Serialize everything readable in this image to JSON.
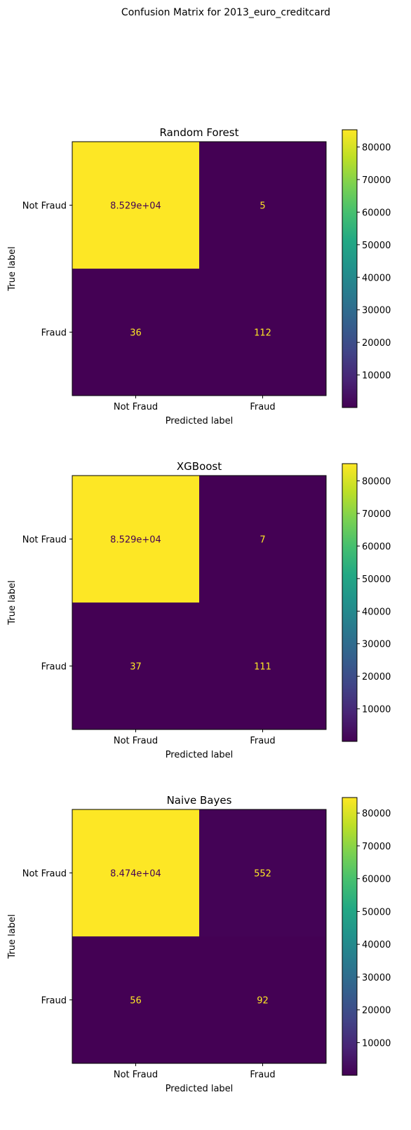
{
  "figure": {
    "suptitle": "Confusion Matrix for 2013_euro_creditcard"
  },
  "colors": {
    "low": "#440154",
    "high": "#fde725",
    "text_on_dark": "#fde725",
    "text_on_light": "#440154",
    "axis": "#000000"
  },
  "chart_data": [
    {
      "type": "heatmap",
      "title": "Random Forest",
      "xlabel": "Predicted label",
      "ylabel": "True label",
      "x_categories": [
        "Not Fraud",
        "Fraud"
      ],
      "y_categories": [
        "Not Fraud",
        "Fraud"
      ],
      "values": [
        [
          85290,
          5
        ],
        [
          36,
          112
        ]
      ],
      "cell_labels": [
        [
          "8.529e+04",
          "5"
        ],
        [
          "36",
          "112"
        ]
      ],
      "colorbar": {
        "min": 5,
        "max": 85290,
        "ticks": [
          10000,
          20000,
          30000,
          40000,
          50000,
          60000,
          70000,
          80000
        ],
        "tick_labels": [
          "10000",
          "20000",
          "30000",
          "40000",
          "50000",
          "60000",
          "70000",
          "80000"
        ]
      }
    },
    {
      "type": "heatmap",
      "title": "XGBoost",
      "xlabel": "Predicted label",
      "ylabel": "True label",
      "x_categories": [
        "Not Fraud",
        "Fraud"
      ],
      "y_categories": [
        "Not Fraud",
        "Fraud"
      ],
      "values": [
        [
          85290,
          7
        ],
        [
          37,
          111
        ]
      ],
      "cell_labels": [
        [
          "8.529e+04",
          "7"
        ],
        [
          "37",
          "111"
        ]
      ],
      "colorbar": {
        "min": 7,
        "max": 85290,
        "ticks": [
          10000,
          20000,
          30000,
          40000,
          50000,
          60000,
          70000,
          80000
        ],
        "tick_labels": [
          "10000",
          "20000",
          "30000",
          "40000",
          "50000",
          "60000",
          "70000",
          "80000"
        ]
      }
    },
    {
      "type": "heatmap",
      "title": "Naive Bayes",
      "xlabel": "Predicted label",
      "ylabel": "True label",
      "x_categories": [
        "Not Fraud",
        "Fraud"
      ],
      "y_categories": [
        "Not Fraud",
        "Fraud"
      ],
      "values": [
        [
          84740,
          552
        ],
        [
          56,
          92
        ]
      ],
      "cell_labels": [
        [
          "8.474e+04",
          "552"
        ],
        [
          "56",
          "92"
        ]
      ],
      "colorbar": {
        "min": 56,
        "max": 84740,
        "ticks": [
          10000,
          20000,
          30000,
          40000,
          50000,
          60000,
          70000,
          80000
        ],
        "tick_labels": [
          "10000",
          "20000",
          "30000",
          "40000",
          "50000",
          "60000",
          "70000",
          "80000"
        ]
      }
    }
  ]
}
